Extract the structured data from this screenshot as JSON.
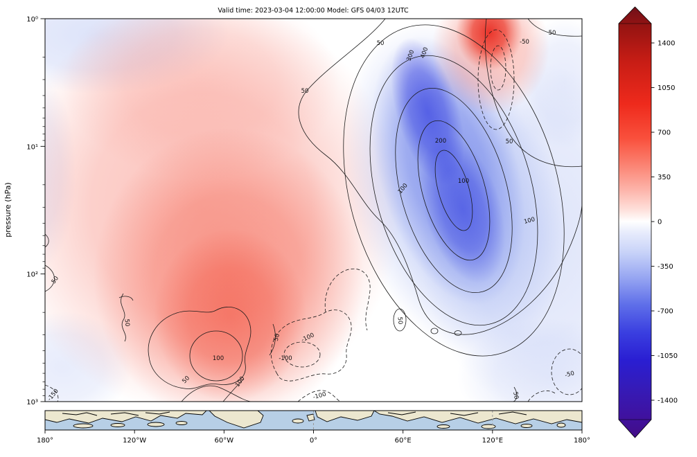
{
  "title": "Valid time: 2023-03-04 12:00:00 Model: GFS 04/03 12UTC",
  "y_axis": {
    "label": "pressure (hPa)",
    "ticks": [
      "10⁰",
      "10¹",
      "10²",
      "10³"
    ]
  },
  "x_axis": {
    "ticks": [
      "180°",
      "120°W",
      "60°W",
      "0°",
      "60°E",
      "120°E",
      "180°"
    ]
  },
  "colorbar": {
    "tick_labels": [
      "1400",
      "1050",
      "700",
      "350",
      "0",
      "-350",
      "-700",
      "-1050",
      "-1400"
    ],
    "top_arrow_color": "#70101a",
    "positive_color": "#ee2a1c",
    "zero_color": "#ffffff",
    "negative_color": "#3a3fe0",
    "bottom_arrow_color": "#420d86"
  },
  "contour_labels": [
    "50",
    "300",
    "400",
    "-50",
    "50",
    "50",
    "200",
    "50",
    "100",
    "100",
    "100",
    "50",
    "100",
    "-100",
    "-100",
    "50",
    "50",
    "50",
    "100",
    "50",
    "-50",
    "-100",
    "50",
    "-150"
  ],
  "chart_data": {
    "type": "heatmap",
    "subtype": "filled-contour longitude-pressure cross-section with overlaid line contours and coastline inset strip",
    "title": "Valid time: 2023-03-04 12:00:00 Model: GFS 04/03 12UTC",
    "xlabel": "longitude",
    "ylabel": "pressure (hPa)",
    "x_ticks": [
      "180°",
      "120°W",
      "60°W",
      "0°",
      "60°E",
      "120°E",
      "180°"
    ],
    "x_range_deg": [
      -180,
      180
    ],
    "y_scale": "log",
    "y_range_hPa": [
      1,
      1000
    ],
    "y_ticks_hPa": [
      1,
      10,
      100,
      1000
    ],
    "colorbar_levels": [
      -1400,
      -1050,
      -700,
      -350,
      0,
      350,
      700,
      1050,
      1400
    ],
    "shaded_features": [
      {
        "sign": "positive",
        "description": "broad positive anomaly (red shading)",
        "center_lon_deg": -60,
        "center_pressure_hPa": 200,
        "peak_value_approx": 600,
        "lon_extent_deg": [
          -130,
          -5
        ],
        "pressure_extent_hPa": [
          3,
          1000
        ]
      },
      {
        "sign": "negative",
        "description": "deep tilted negative anomaly band (blue shading)",
        "center_lon_deg": 85,
        "center_pressure_hPa": 40,
        "peak_value_approx": -850,
        "tilt": "from ~45°E at 1 hPa to ~130°E at ~500 hPa"
      },
      {
        "sign": "positive",
        "description": "intense positive anomaly near top of domain",
        "center_lon_deg": 113,
        "center_pressure_hPa": 2,
        "peak_value_approx": 900
      },
      {
        "sign": "negative",
        "description": "weak negative anomaly upper-left",
        "center_lon_deg": -150,
        "center_pressure_hPa": 3,
        "peak_value_approx": -250
      },
      {
        "sign": "negative",
        "description": "weak negative anomaly lower-right",
        "center_lon_deg": 140,
        "center_pressure_hPa": 300,
        "peak_value_approx": -350
      }
    ],
    "line_contour_values_labeled": [
      -150,
      -100,
      -50,
      50,
      100,
      200,
      300,
      400
    ],
    "line_contour_style": {
      "positive": "solid",
      "negative": "dashed"
    },
    "inset_map": "global coastline strip drawn beneath the cross-section along the x axis",
    "grid": false,
    "legend": "vertical colorbar at right with triangular extend arrows"
  }
}
